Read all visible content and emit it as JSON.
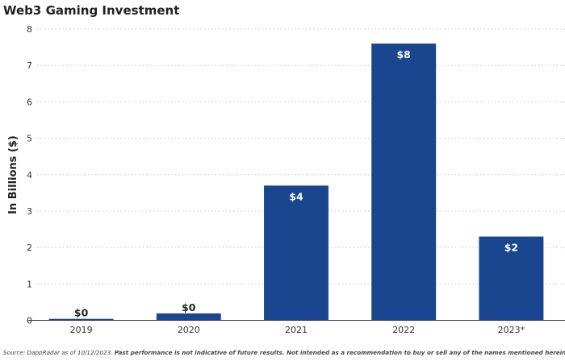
{
  "chart_data": {
    "type": "bar",
    "title": "Web3 Gaming Investment",
    "xlabel": "",
    "ylabel": "In Billions ($)",
    "categories": [
      "2019",
      "2020",
      "2021",
      "2022",
      "2023*"
    ],
    "values": [
      0.04,
      0.19,
      3.7,
      7.6,
      2.3
    ],
    "data_labels": [
      "$0",
      "$0",
      "$4",
      "$8",
      "$2"
    ],
    "ylim": [
      0,
      8
    ],
    "yticks": [
      "0",
      "1",
      "2",
      "3",
      "4",
      "5",
      "6",
      "7",
      "8"
    ],
    "grid": true,
    "bar_color": "#1a4690"
  },
  "footnote": {
    "source": "Source: DappRadar as of 10/12/2023.",
    "disclaimer": "Past performance is not indicative of future results. Not intended as a recommendation to buy or sell any of the names mentioned herein."
  }
}
